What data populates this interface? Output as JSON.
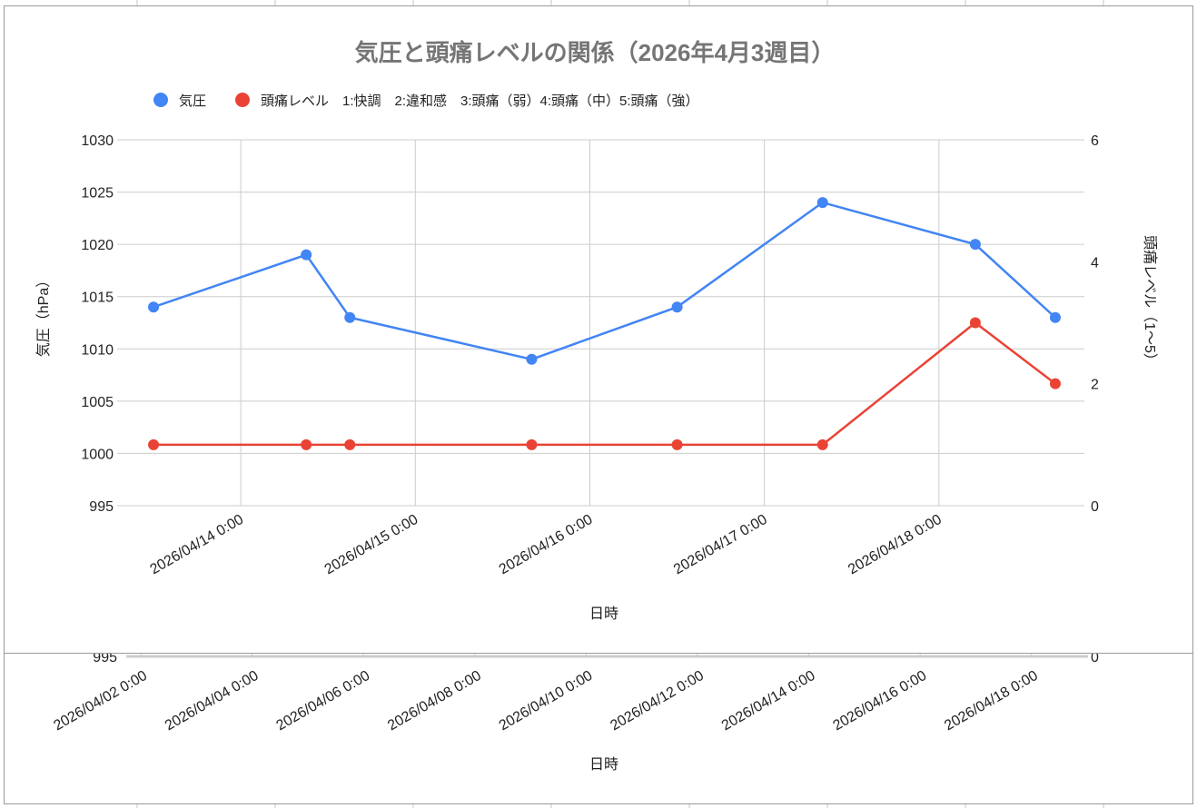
{
  "chart_data": {
    "type": "line",
    "title": "気圧と頭痛レベルの関係（2026年4月3週目）",
    "legend": {
      "position": "top",
      "entries": [
        "気圧",
        "頭痛レベル　1:快調　2:違和感　3:頭痛（弱）4:頭痛（中）5:頭痛（強）"
      ]
    },
    "xlabel": "日時",
    "ylabel_left": "気圧（hPa）",
    "ylabel_right": "頭痛レベル（1〜5）",
    "x_ticks": [
      "2026/04/14 0:00",
      "2026/04/15 0:00",
      "2026/04/16 0:00",
      "2026/04/17 0:00",
      "2026/04/18 0:00"
    ],
    "y_left_ticks": [
      995,
      1000,
      1005,
      1010,
      1015,
      1020,
      1025,
      1030
    ],
    "y_right_ticks": [
      0,
      2,
      4,
      6
    ],
    "ylim_left": [
      995,
      1030
    ],
    "ylim_right": [
      0,
      6
    ],
    "xlim": [
      "2026/04/13 7:00",
      "2026/04/18 20:00"
    ],
    "grid": true,
    "x": [
      "2026/04/13 12:00",
      "2026/04/14 9:00",
      "2026/04/14 15:00",
      "2026/04/15 16:00",
      "2026/04/16 12:00",
      "2026/04/17 8:00",
      "2026/04/18 5:00",
      "2026/04/18 16:00"
    ],
    "series": [
      {
        "name": "気圧",
        "axis": "left",
        "color": "#4285f4",
        "values": [
          1014,
          1019,
          1013,
          1009,
          1014,
          1024,
          1020,
          1013
        ]
      },
      {
        "name": "頭痛レベル　1:快調　2:違和感　3:頭痛（弱）4:頭痛（中）5:頭痛（強）",
        "axis": "right",
        "color": "#ea4335",
        "values": [
          1,
          1,
          1,
          1,
          1,
          1,
          3,
          2
        ]
      }
    ]
  },
  "background_chart": {
    "x_ticks": [
      "2026/04/02 0:00",
      "2026/04/04 0:00",
      "2026/04/06 0:00",
      "2026/04/08 0:00",
      "2026/04/10 0:00",
      "2026/04/12 0:00",
      "2026/04/14 0:00",
      "2026/04/16 0:00",
      "2026/04/18 0:00"
    ],
    "y_left_min": "995",
    "y_right_min": "0",
    "xlabel": "日時"
  }
}
